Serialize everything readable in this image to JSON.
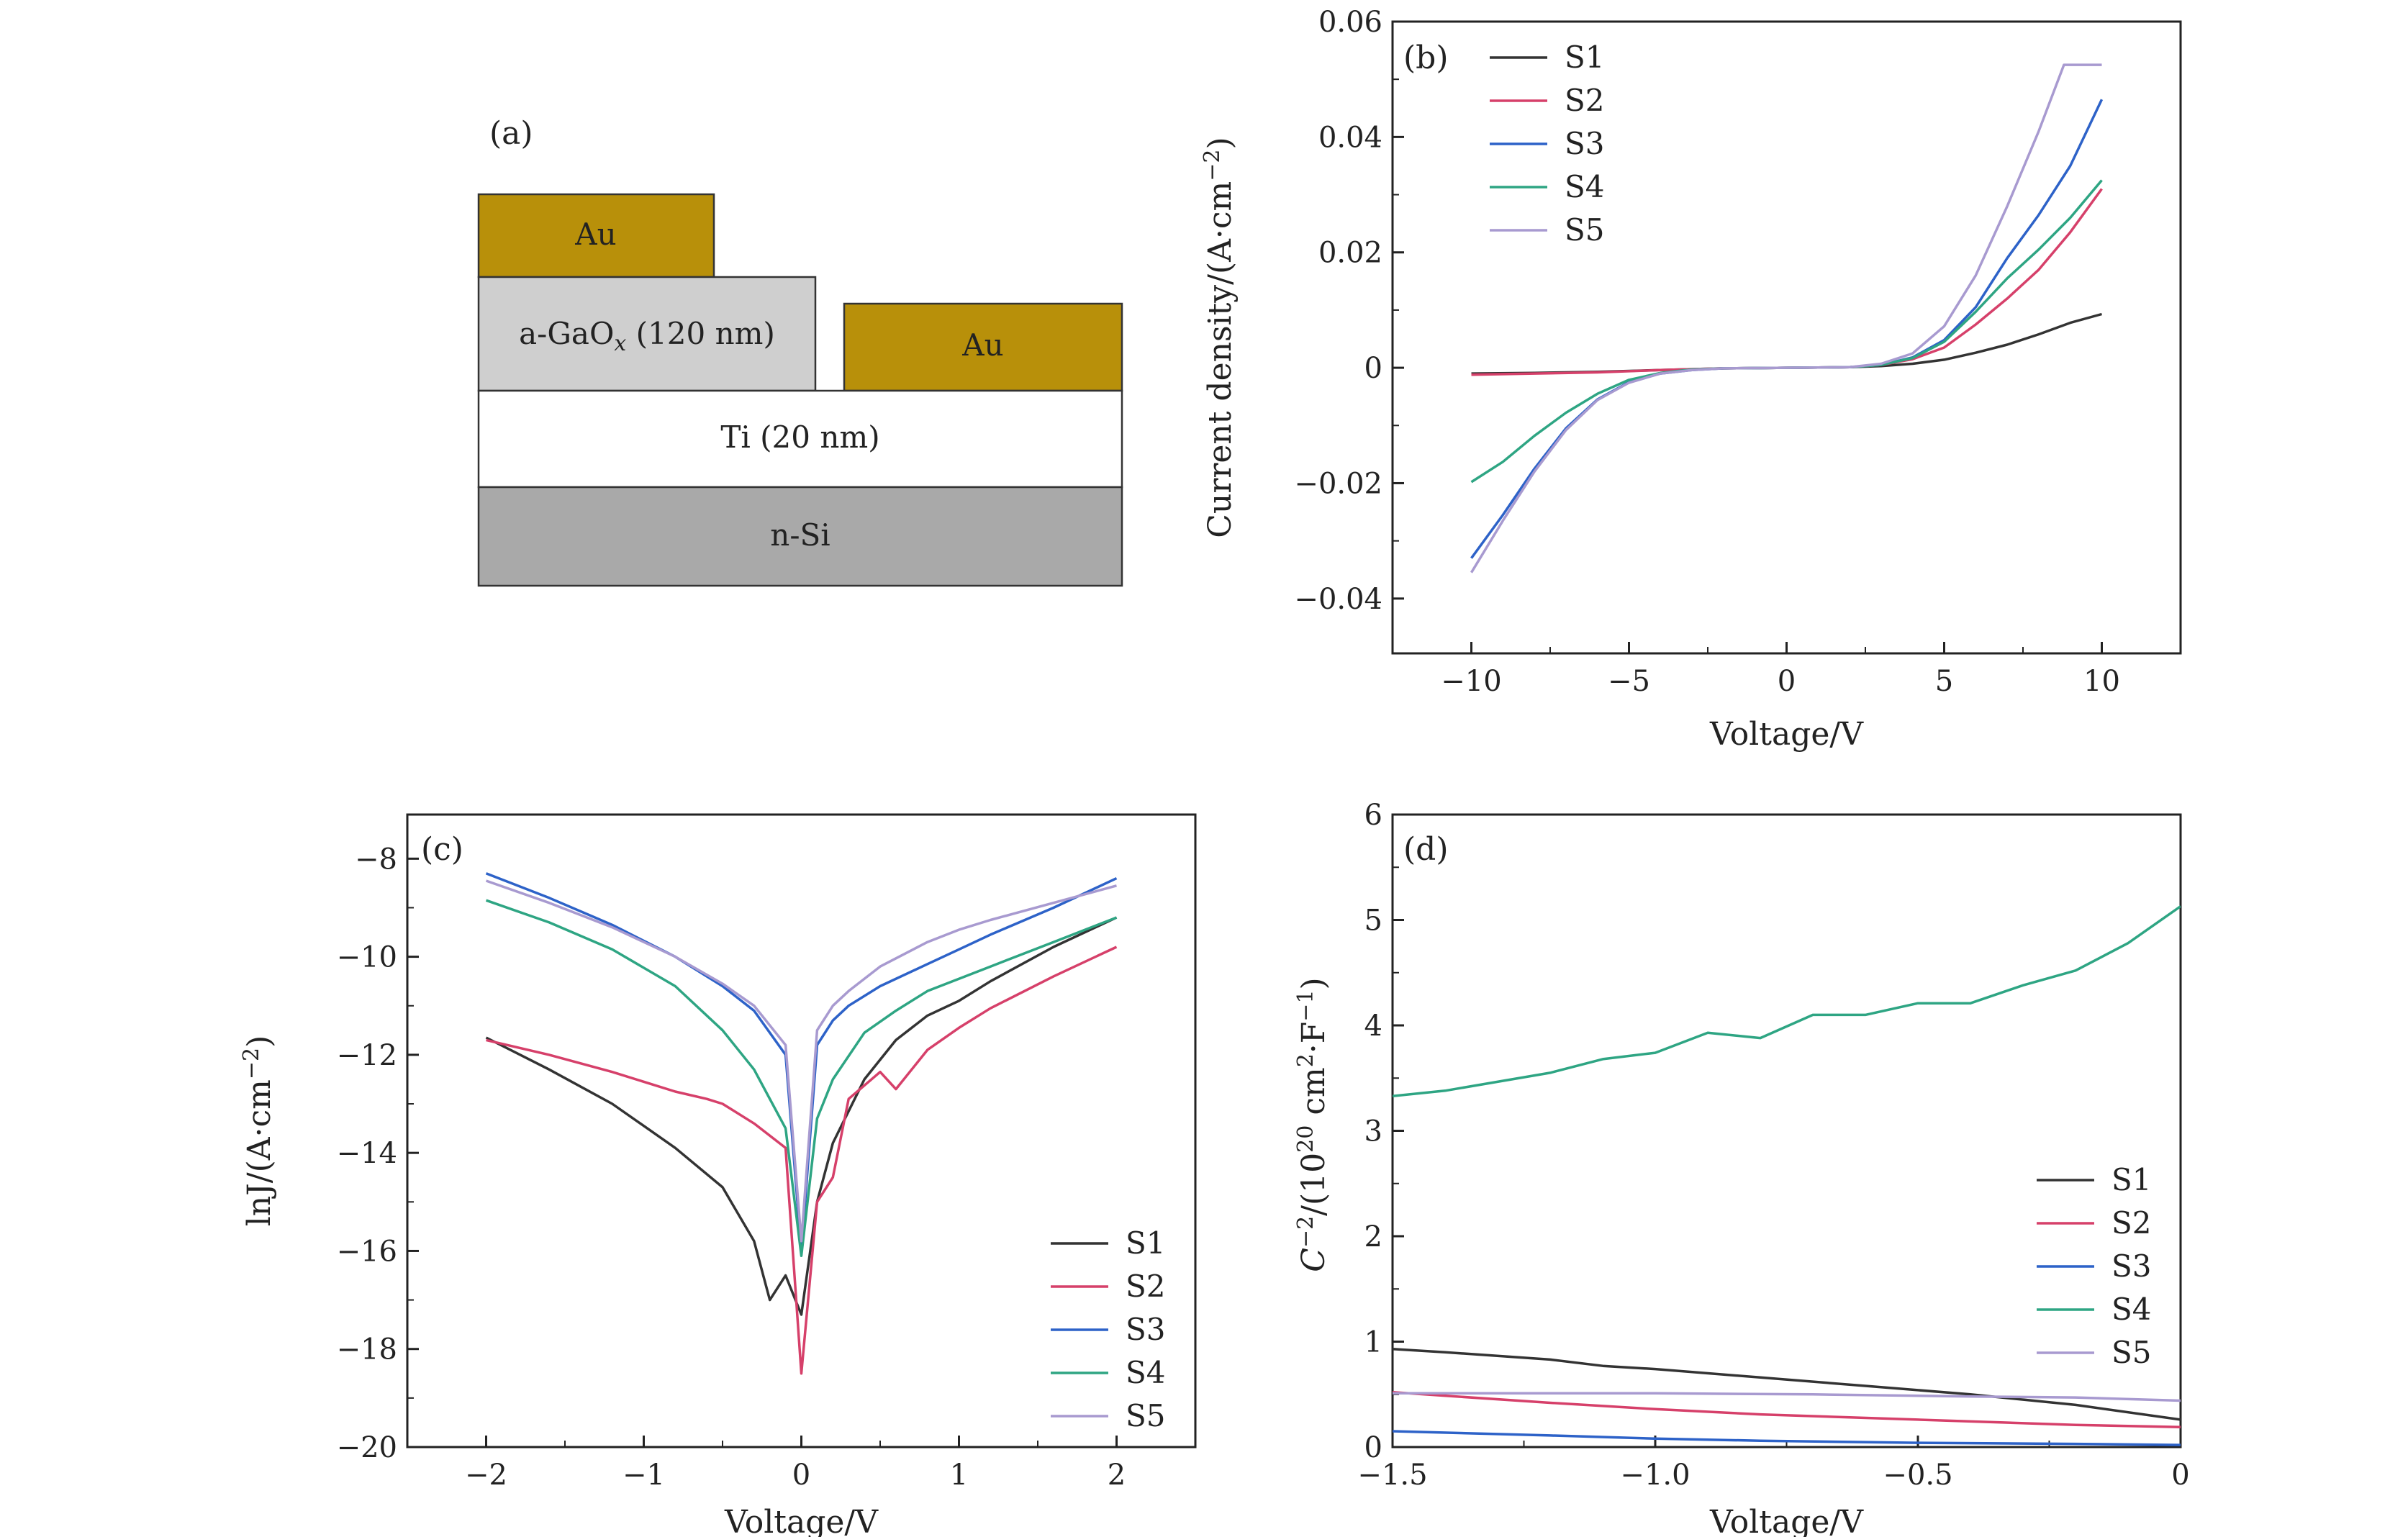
{
  "schematic": {
    "panel_label": "(a)",
    "layers": [
      {
        "id": "au_top",
        "label": "Au",
        "color": "#b8900a",
        "text_color": "#6b1a1a"
      },
      {
        "id": "gaox",
        "label": "a-GaO",
        "subscript": "x",
        "label_suffix": " (120 nm)",
        "color": "#cfcfcf"
      },
      {
        "id": "au_right",
        "label": "Au",
        "color": "#b8900a",
        "text_color": "#6b1a1a"
      },
      {
        "id": "ti",
        "label": "Ti (20 nm)",
        "color": "#ffffff"
      },
      {
        "id": "nsi",
        "label": "n-Si",
        "color": "#a9a9a9"
      }
    ]
  },
  "colors": {
    "S1": "#333333",
    "S2": "#d6406a",
    "S3": "#2d62c8",
    "S4": "#2ea583",
    "S5": "#a89ad0"
  },
  "chart_data": [
    {
      "panel": "(b)",
      "type": "line",
      "xlabel": "Voltage/V",
      "ylabel": "Current density/(A·cm",
      "ylabel_sup": "−2",
      "ylabel_close": ")",
      "xlim": [
        -12.5,
        12.5
      ],
      "ylim": [
        -0.0495,
        0.06
      ],
      "xticks": [
        -10,
        -5,
        0,
        5,
        10
      ],
      "xtick_labels": [
        "−10",
        "−5",
        "0",
        "5",
        "10"
      ],
      "yticks": [
        -0.04,
        -0.02,
        0,
        0.02,
        0.04,
        0.06
      ],
      "ytick_labels": [
        "−0.04",
        "−0.02",
        "0",
        "0.02",
        "0.04",
        "0.06"
      ],
      "legend": "top-left",
      "series": [
        {
          "name": "S1",
          "x": [
            -10,
            -8,
            -6,
            -4,
            -2,
            0,
            2,
            3,
            4,
            5,
            6,
            7,
            8,
            9,
            10
          ],
          "y": [
            -0.001,
            -0.0009,
            -0.0007,
            -0.0004,
            -0.0001,
            0,
            0.0001,
            0.0003,
            0.0007,
            0.0014,
            0.0026,
            0.004,
            0.0058,
            0.0078,
            0.0093
          ]
        },
        {
          "name": "S2",
          "x": [
            -10,
            -8,
            -6,
            -4,
            -2,
            0,
            2,
            3,
            4,
            5,
            6,
            7,
            8,
            9,
            10
          ],
          "y": [
            -0.0012,
            -0.001,
            -0.0008,
            -0.0004,
            -0.0001,
            0,
            0.0001,
            0.0005,
            0.0015,
            0.0035,
            0.0075,
            0.012,
            0.017,
            0.0235,
            0.031
          ]
        },
        {
          "name": "S3",
          "x": [
            -10,
            -9,
            -8,
            -7,
            -6,
            -5,
            -4,
            -3,
            -2,
            0,
            2,
            3,
            4,
            5,
            6,
            7,
            8,
            9,
            10
          ],
          "y": [
            -0.033,
            -0.0255,
            -0.0175,
            -0.0105,
            -0.0055,
            -0.0025,
            -0.001,
            -0.0004,
            -0.0001,
            0,
            0.0001,
            0.0005,
            0.0018,
            0.0048,
            0.0105,
            0.019,
            0.0265,
            0.035,
            0.0465
          ]
        },
        {
          "name": "S4",
          "x": [
            -10,
            -9,
            -8,
            -7,
            -6,
            -5,
            -4,
            -3,
            -2,
            0,
            2,
            3,
            4,
            5,
            6,
            7,
            8,
            9,
            10
          ],
          "y": [
            -0.0198,
            -0.0163,
            -0.0118,
            -0.0078,
            -0.0045,
            -0.0021,
            -0.0009,
            -0.0003,
            -0.0001,
            0,
            0.0001,
            0.0005,
            0.0017,
            0.0045,
            0.0097,
            0.0155,
            0.0205,
            0.026,
            0.0325
          ]
        },
        {
          "name": "S5",
          "x": [
            -10,
            -9,
            -8,
            -7,
            -6,
            -5,
            -4,
            -3,
            -2,
            0,
            2,
            3,
            4,
            5,
            6,
            7,
            8,
            8.8,
            9.2,
            10
          ],
          "y": [
            -0.0355,
            -0.0265,
            -0.018,
            -0.0108,
            -0.0056,
            -0.0026,
            -0.001,
            -0.0004,
            -0.0001,
            0,
            0.0001,
            0.0007,
            0.0025,
            0.0072,
            0.016,
            0.028,
            0.041,
            0.0525,
            0.0525,
            0.0525
          ]
        }
      ]
    },
    {
      "panel": "(c)",
      "type": "line",
      "xlabel": "Voltage/V",
      "ylabel": "lnJ/(A·cm",
      "ylabel_sup": "−2",
      "ylabel_close": ")",
      "xlim": [
        -2.5,
        2.5
      ],
      "ylim": [
        -20,
        -7.1
      ],
      "xticks": [
        -2,
        -1,
        0,
        1,
        2
      ],
      "xtick_labels": [
        "−2",
        "−1",
        "0",
        "1",
        "2"
      ],
      "yticks": [
        -20,
        -18,
        -16,
        -14,
        -12,
        -10,
        -8
      ],
      "ytick_labels": [
        "−20",
        "−18",
        "−16",
        "−14",
        "−12",
        "−10",
        "−8"
      ],
      "legend": "bottom-right",
      "series": [
        {
          "name": "S1",
          "x": [
            -2,
            -1.6,
            -1.2,
            -0.8,
            -0.5,
            -0.3,
            -0.2,
            -0.1,
            0,
            0.1,
            0.2,
            0.4,
            0.6,
            0.8,
            1.0,
            1.2,
            1.6,
            2
          ],
          "y": [
            -11.65,
            -12.3,
            -13.0,
            -13.9,
            -14.7,
            -15.8,
            -17.0,
            -16.5,
            -17.3,
            -15.0,
            -13.8,
            -12.5,
            -11.7,
            -11.2,
            -10.9,
            -10.5,
            -9.8,
            -9.2
          ]
        },
        {
          "name": "S2",
          "x": [
            -2,
            -1.6,
            -1.2,
            -0.8,
            -0.6,
            -0.5,
            -0.3,
            -0.1,
            0,
            0.1,
            0.2,
            0.3,
            0.5,
            0.6,
            0.8,
            1.0,
            1.2,
            1.6,
            2
          ],
          "y": [
            -11.7,
            -12.0,
            -12.35,
            -12.75,
            -12.9,
            -13.0,
            -13.4,
            -13.9,
            -18.5,
            -15.0,
            -14.5,
            -12.9,
            -12.35,
            -12.7,
            -11.9,
            -11.45,
            -11.05,
            -10.4,
            -9.8
          ]
        },
        {
          "name": "S3",
          "x": [
            -2,
            -1.6,
            -1.2,
            -0.8,
            -0.5,
            -0.3,
            -0.1,
            0,
            0.1,
            0.2,
            0.3,
            0.5,
            0.8,
            1.0,
            1.2,
            1.6,
            2
          ],
          "y": [
            -8.3,
            -8.8,
            -9.35,
            -10.0,
            -10.6,
            -11.1,
            -12.0,
            -16.0,
            -11.8,
            -11.3,
            -11.0,
            -10.6,
            -10.15,
            -9.85,
            -9.55,
            -9.0,
            -8.4
          ]
        },
        {
          "name": "S4",
          "x": [
            -2,
            -1.6,
            -1.2,
            -0.8,
            -0.5,
            -0.3,
            -0.1,
            0,
            0.1,
            0.2,
            0.4,
            0.6,
            0.8,
            1.0,
            1.2,
            1.6,
            2
          ],
          "y": [
            -8.85,
            -9.3,
            -9.85,
            -10.6,
            -11.5,
            -12.3,
            -13.5,
            -16.1,
            -13.3,
            -12.5,
            -11.55,
            -11.1,
            -10.7,
            -10.45,
            -10.2,
            -9.7,
            -9.2
          ]
        },
        {
          "name": "S5",
          "x": [
            -2,
            -1.6,
            -1.2,
            -0.8,
            -0.5,
            -0.3,
            -0.1,
            0,
            0.1,
            0.2,
            0.3,
            0.5,
            0.8,
            1.0,
            1.2,
            1.6,
            2
          ],
          "y": [
            -8.45,
            -8.9,
            -9.4,
            -10.0,
            -10.55,
            -11.0,
            -11.8,
            -15.8,
            -11.5,
            -11.0,
            -10.7,
            -10.2,
            -9.7,
            -9.45,
            -9.25,
            -8.9,
            -8.55
          ]
        }
      ]
    },
    {
      "panel": "(d)",
      "type": "line",
      "xlabel": "Voltage/V",
      "xlim": [
        -1.5,
        0
      ],
      "ylim": [
        0,
        6
      ],
      "xticks": [
        -1.5,
        -1.0,
        -0.5,
        0
      ],
      "xtick_labels": [
        "−1.5",
        "−1.0",
        "−0.5",
        "0"
      ],
      "yticks": [
        0,
        1,
        2,
        3,
        4,
        5,
        6
      ],
      "ytick_labels": [
        "0",
        "1",
        "2",
        "3",
        "4",
        "5",
        "6"
      ],
      "legend": "bottom-right",
      "series": [
        {
          "name": "S1",
          "x": [
            -1.5,
            -1.4,
            -1.2,
            -1.1,
            -1.0,
            -0.8,
            -0.6,
            -0.4,
            -0.2,
            0
          ],
          "y": [
            0.93,
            0.9,
            0.83,
            0.77,
            0.74,
            0.66,
            0.58,
            0.5,
            0.4,
            0.26
          ]
        },
        {
          "name": "S2",
          "x": [
            -1.5,
            -1.2,
            -1.0,
            -0.8,
            -0.5,
            -0.2,
            0
          ],
          "y": [
            0.52,
            0.42,
            0.36,
            0.31,
            0.26,
            0.21,
            0.19
          ]
        },
        {
          "name": "S3",
          "x": [
            -1.5,
            -1.2,
            -1.0,
            -0.8,
            -0.5,
            -0.2,
            0
          ],
          "y": [
            0.15,
            0.11,
            0.08,
            0.06,
            0.04,
            0.03,
            0.02
          ]
        },
        {
          "name": "S4",
          "x": [
            -1.5,
            -1.4,
            -1.2,
            -1.1,
            -1.0,
            -0.9,
            -0.8,
            -0.7,
            -0.6,
            -0.5,
            -0.4,
            -0.3,
            -0.2,
            -0.1,
            0
          ],
          "y": [
            3.33,
            3.38,
            3.55,
            3.68,
            3.74,
            3.93,
            3.88,
            4.1,
            4.1,
            4.21,
            4.21,
            4.38,
            4.52,
            4.78,
            5.13
          ]
        },
        {
          "name": "S5",
          "x": [
            -1.5,
            -1.3,
            -1.0,
            -0.7,
            -0.4,
            -0.2,
            0
          ],
          "y": [
            0.51,
            0.51,
            0.51,
            0.5,
            0.48,
            0.47,
            0.44
          ]
        }
      ]
    }
  ]
}
